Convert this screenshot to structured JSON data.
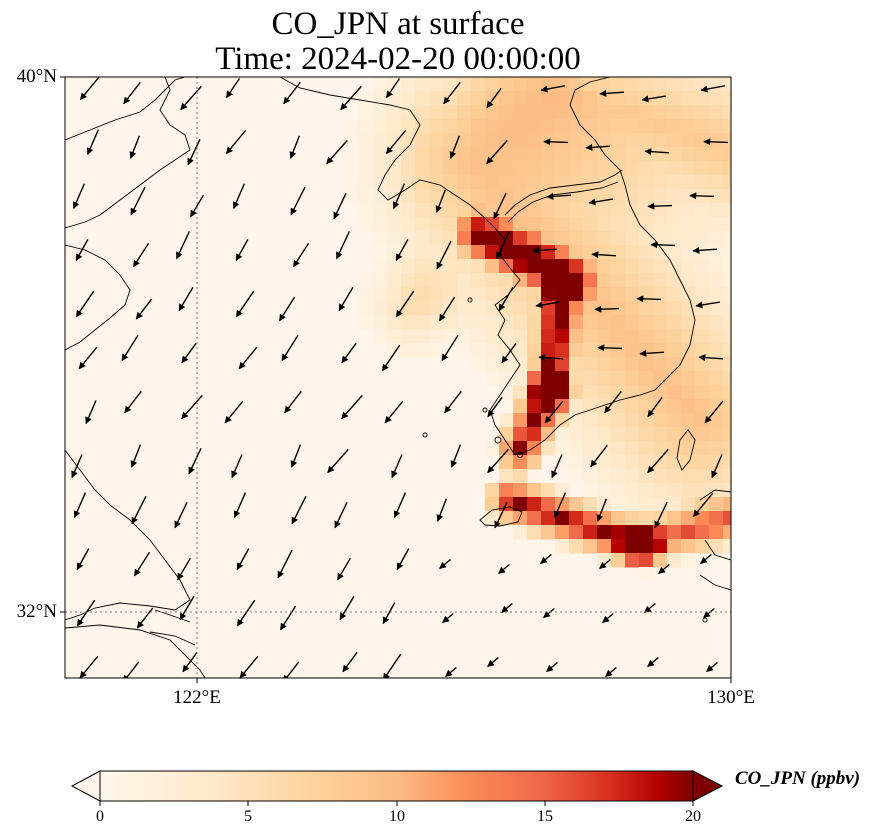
{
  "title": {
    "line1": "CO_JPN at surface",
    "line2": "Time: 2024-02-20 00:00:00"
  },
  "map": {
    "lon_range": [
      120,
      130
    ],
    "lat_range": [
      31,
      40
    ],
    "lat_labels": [
      "40°N",
      "32°N"
    ],
    "lon_labels": [
      "122°E",
      "130°E"
    ],
    "gridlines": "dotted at 122°E and 32°N",
    "features": [
      "coastlines",
      "wind-vectors",
      "co-concentration-field"
    ]
  },
  "colorbar": {
    "label": "CO_JPN (ppbv)",
    "ticks": [
      "0",
      "5",
      "10",
      "15",
      "20"
    ],
    "range": [
      0,
      20
    ],
    "extend": "both",
    "colormap": "OrRd",
    "colors": [
      "#fff7ec",
      "#fdd49e",
      "#fc8d59",
      "#d7301f",
      "#7f0000"
    ]
  }
}
